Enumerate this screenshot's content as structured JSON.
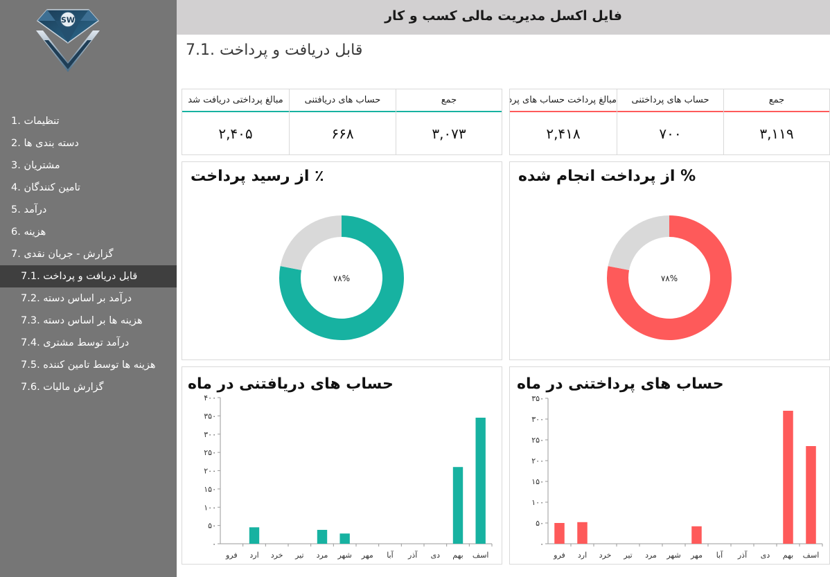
{
  "app_title": "فایل اکسل مدیریت مالی کسب و کار",
  "page_title": "قابل دریافت و پرداخت .7.1",
  "logo": {
    "text": "SW",
    "icon": "diamond-logo"
  },
  "menu": [
    {
      "label": "تنظیمات .1",
      "sub": false,
      "active": false
    },
    {
      "label": "دسته بندی ها .2",
      "sub": false,
      "active": false
    },
    {
      "label": "مشتریان .3",
      "sub": false,
      "active": false
    },
    {
      "label": "تامین کنندگان .4",
      "sub": false,
      "active": false
    },
    {
      "label": "درآمد .5",
      "sub": false,
      "active": false
    },
    {
      "label": "هزینه .6",
      "sub": false,
      "active": false
    },
    {
      "label": "گزارش - جریان نقدی .7",
      "sub": false,
      "active": false
    },
    {
      "label": "قابل دریافت و پرداخت .7.1",
      "sub": true,
      "active": true
    },
    {
      "label": "درآمد بر اساس دسته .7.2",
      "sub": true,
      "active": false
    },
    {
      "label": "هزینه ها بر اساس دسته .7.3",
      "sub": true,
      "active": false
    },
    {
      "label": "درآمد توسط مشتری .7.4",
      "sub": true,
      "active": false
    },
    {
      "label": "هزینه ها توسط تامین کننده .7.5",
      "sub": true,
      "active": false
    },
    {
      "label": "گزارش مالیات .7.6",
      "sub": true,
      "active": false
    }
  ],
  "receivable_stats": {
    "accent": "#17b2a1",
    "headers": [
      "مبالغ پرداختی دریافت شد",
      "حساب های دریافتنی",
      "جمع"
    ],
    "values": [
      "۲,۴۰۵",
      "۶۶۸",
      "۳,۰۷۳"
    ]
  },
  "payable_stats": {
    "accent": "#fe5a5a",
    "headers": [
      "مبالغ پرداخت حساب های پرداختنی",
      "حساب های پرداختنی",
      "جمع"
    ],
    "values": [
      "۲,۴۱۸",
      "۷۰۰",
      "۳,۱۱۹"
    ]
  },
  "receipt_donut": {
    "title": "٪ از رسید پرداخت",
    "label": "۷۸%",
    "percent": 78,
    "color": "#17b2a1",
    "rest_color": "#d9d9d9"
  },
  "payment_donut": {
    "title": "% از پرداخت انجام شده",
    "label": "۷۸%",
    "percent": 78,
    "color": "#fe5a5a",
    "rest_color": "#d9d9d9"
  },
  "chart_data": [
    {
      "type": "bar",
      "title": "حساب های دریافتنی در ماه",
      "color": "#17b2a1",
      "categories": [
        "فرو",
        "ارد",
        "خرد",
        "تیر",
        "مرد",
        "شهر",
        "مهر",
        "آبا",
        "آذر",
        "دی",
        "بهم",
        "اسف"
      ],
      "values": [
        0,
        45,
        0,
        0,
        38,
        28,
        0,
        0,
        0,
        0,
        210,
        345
      ],
      "yticks": [
        "۰",
        "۵۰",
        "۱۰۰",
        "۱۵۰",
        "۲۰۰",
        "۲۵۰",
        "۳۰۰",
        "۳۵۰",
        "۴۰۰"
      ],
      "ylim": [
        0,
        400
      ]
    },
    {
      "type": "bar",
      "title": "حساب های پرداختنی در ماه",
      "color": "#fe5a5a",
      "categories": [
        "فرو",
        "ارد",
        "خرد",
        "تیر",
        "مرد",
        "شهر",
        "مهر",
        "آبا",
        "آذر",
        "دی",
        "بهم",
        "اسف"
      ],
      "values": [
        50,
        52,
        0,
        0,
        0,
        0,
        42,
        0,
        0,
        0,
        320,
        235
      ],
      "yticks": [
        "۰",
        "۵۰",
        "۱۰۰",
        "۱۵۰",
        "۲۰۰",
        "۲۵۰",
        "۳۰۰",
        "۳۵۰"
      ],
      "ylim": [
        0,
        350
      ]
    }
  ]
}
